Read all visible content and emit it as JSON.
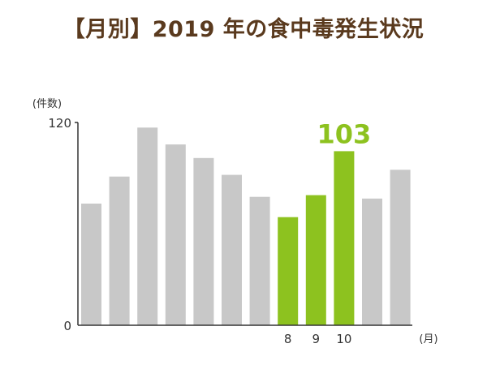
{
  "title": "【月別】2019 年の食中毒発生状況",
  "colors": {
    "title": "#5a3a1e",
    "bar_default": "#c8c8c8",
    "bar_highlight": "#8dc21f",
    "axis": "#333333"
  },
  "chart_data": {
    "type": "bar",
    "title": "【月別】2019 年の食中毒発生状況",
    "ylabel": "(件数)",
    "xlabel": "(月)",
    "ylim": [
      0,
      120
    ],
    "y_ticks": [
      "0",
      "120"
    ],
    "categories": [
      "1",
      "2",
      "3",
      "4",
      "5",
      "6",
      "7",
      "8",
      "9",
      "10",
      "11",
      "12"
    ],
    "x_tick_labels": [
      "",
      "",
      "",
      "",
      "",
      "",
      "",
      "8",
      "9",
      "10",
      "",
      ""
    ],
    "values": [
      72,
      88,
      117,
      107,
      99,
      89,
      76,
      64,
      77,
      103,
      75,
      92
    ],
    "highlighted": [
      false,
      false,
      false,
      false,
      false,
      false,
      false,
      true,
      true,
      true,
      false,
      false
    ],
    "value_labels": [
      "",
      "",
      "",
      "",
      "",
      "",
      "",
      "",
      "",
      "103",
      "",
      ""
    ],
    "grid": false,
    "legend": "none"
  }
}
